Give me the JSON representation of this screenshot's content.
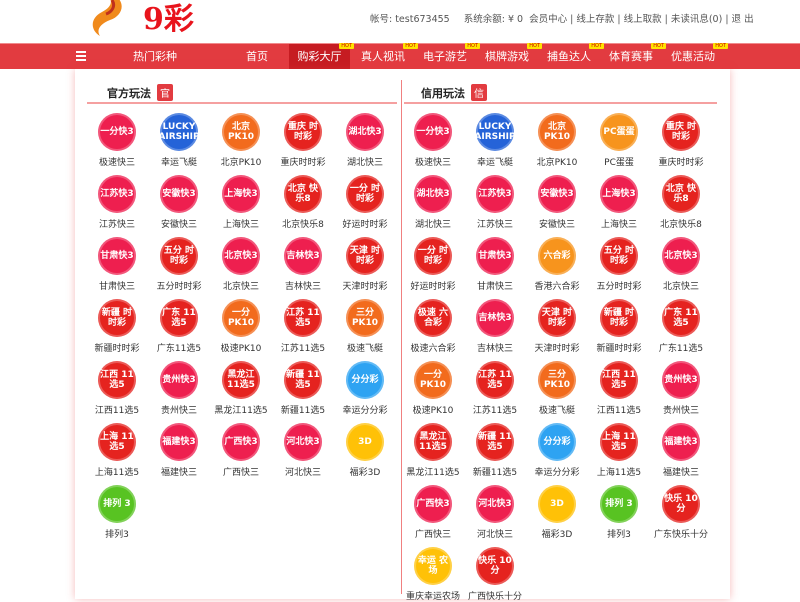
{
  "header": {
    "brand": "9彩",
    "account_label": "帐号:",
    "account": "test673455",
    "balance_label": "系统余额:",
    "balance": "¥ 0",
    "links": [
      "会员中心",
      "线上存款",
      "线上取款",
      "未读讯息(0)",
      "退 出"
    ]
  },
  "nav": {
    "menu": "热门彩种",
    "items": [
      {
        "label": "首页",
        "hot": false
      },
      {
        "label": "购彩大厅",
        "hot": true,
        "active": true
      },
      {
        "label": "真人视讯",
        "hot": true
      },
      {
        "label": "电子游艺",
        "hot": true
      },
      {
        "label": "棋牌游戏",
        "hot": true
      },
      {
        "label": "捕鱼达人",
        "hot": true
      },
      {
        "label": "体育赛事",
        "hot": true
      },
      {
        "label": "优惠活动",
        "hot": true
      }
    ],
    "hot_badge": "HOT"
  },
  "colors": {
    "nav": "#e23b40",
    "active": "#c61c22",
    "k3": "#ee1f4f",
    "pk10": "#f26b1d",
    "ssc": "#e5231f",
    "x5": "#e5231f",
    "lucky": "#2563d8",
    "ffc": "#2ea3f2",
    "d3": "#ffc107",
    "pl3": "#58c322",
    "pc": "#f7941d"
  },
  "official": {
    "title": "官方玩法",
    "badge": "官",
    "games": [
      {
        "name": "极速快三",
        "icon": "k3",
        "mark": "一分快3"
      },
      {
        "name": "幸运飞艇",
        "icon": "lucky",
        "mark": "LUCKY AIRSHIP"
      },
      {
        "name": "北京PK10",
        "icon": "pk10",
        "mark": "北京 PK10"
      },
      {
        "name": "重庆时时彩",
        "icon": "ssc",
        "mark": "重庆 时时彩"
      },
      {
        "name": "湖北快三",
        "icon": "k3",
        "mark": "湖北快3"
      },
      {
        "name": "江苏快三",
        "icon": "k3",
        "mark": "江苏快3"
      },
      {
        "name": "安徽快三",
        "icon": "k3",
        "mark": "安徽快3"
      },
      {
        "name": "上海快三",
        "icon": "k3",
        "mark": "上海快3"
      },
      {
        "name": "北京快乐8",
        "icon": "ssc",
        "mark": "北京 快乐8"
      },
      {
        "name": "好运时时彩",
        "icon": "ssc",
        "mark": "一分 时时彩"
      },
      {
        "name": "甘肃快三",
        "icon": "k3",
        "mark": "甘肃快3"
      },
      {
        "name": "五分时时彩",
        "icon": "ssc",
        "mark": "五分 时时彩"
      },
      {
        "name": "北京快三",
        "icon": "k3",
        "mark": "北京快3"
      },
      {
        "name": "吉林快三",
        "icon": "k3",
        "mark": "吉林快3"
      },
      {
        "name": "天津时时彩",
        "icon": "ssc",
        "mark": "天津 时时彩"
      },
      {
        "name": "新疆时时彩",
        "icon": "ssc",
        "mark": "新疆 时时彩"
      },
      {
        "name": "广东11选5",
        "icon": "x5",
        "mark": "广东 11选5"
      },
      {
        "name": "极速PK10",
        "icon": "pk10",
        "mark": "一分 PK10"
      },
      {
        "name": "江苏11选5",
        "icon": "x5",
        "mark": "江苏 11选5"
      },
      {
        "name": "极速飞艇",
        "icon": "pk10",
        "mark": "三分 PK10"
      },
      {
        "name": "江西11选5",
        "icon": "x5",
        "mark": "江西 11选5"
      },
      {
        "name": "贵州快三",
        "icon": "k3",
        "mark": "贵州快3"
      },
      {
        "name": "黑龙江11选5",
        "icon": "x5",
        "mark": "黑龙江 11选5"
      },
      {
        "name": "新疆11选5",
        "icon": "x5",
        "mark": "新疆 11选5"
      },
      {
        "name": "幸运分分彩",
        "icon": "ffc",
        "mark": "分分彩"
      },
      {
        "name": "上海11选5",
        "icon": "x5",
        "mark": "上海 11选5"
      },
      {
        "name": "福建快三",
        "icon": "k3",
        "mark": "福建快3"
      },
      {
        "name": "广西快三",
        "icon": "k3",
        "mark": "广西快3"
      },
      {
        "name": "河北快三",
        "icon": "k3",
        "mark": "河北快3"
      },
      {
        "name": "福彩3D",
        "icon": "d3",
        "mark": "3D"
      },
      {
        "name": "排列3",
        "icon": "pl3",
        "mark": "排列 3"
      }
    ]
  },
  "credit": {
    "title": "信用玩法",
    "badge": "信",
    "games": [
      {
        "name": "极速快三",
        "icon": "k3",
        "mark": "一分快3"
      },
      {
        "name": "幸运飞艇",
        "icon": "lucky",
        "mark": "LUCKY AIRSHIP"
      },
      {
        "name": "北京PK10",
        "icon": "pk10",
        "mark": "北京 PK10"
      },
      {
        "name": "PC蛋蛋",
        "icon": "pc",
        "mark": "PC蛋蛋"
      },
      {
        "name": "重庆时时彩",
        "icon": "ssc",
        "mark": "重庆 时时彩"
      },
      {
        "name": "湖北快三",
        "icon": "k3",
        "mark": "湖北快3"
      },
      {
        "name": "江苏快三",
        "icon": "k3",
        "mark": "江苏快3"
      },
      {
        "name": "安徽快三",
        "icon": "k3",
        "mark": "安徽快3"
      },
      {
        "name": "上海快三",
        "icon": "k3",
        "mark": "上海快3"
      },
      {
        "name": "北京快乐8",
        "icon": "ssc",
        "mark": "北京 快乐8"
      },
      {
        "name": "好运时时彩",
        "icon": "ssc",
        "mark": "一分 时时彩"
      },
      {
        "name": "甘肃快三",
        "icon": "k3",
        "mark": "甘肃快3"
      },
      {
        "name": "香港六合彩",
        "icon": "pc",
        "mark": "六合彩"
      },
      {
        "name": "五分时时彩",
        "icon": "ssc",
        "mark": "五分 时时彩"
      },
      {
        "name": "北京快三",
        "icon": "k3",
        "mark": "北京快3"
      },
      {
        "name": "极速六合彩",
        "icon": "ssc",
        "mark": "极速 六合彩"
      },
      {
        "name": "吉林快三",
        "icon": "k3",
        "mark": "吉林快3"
      },
      {
        "name": "天津时时彩",
        "icon": "ssc",
        "mark": "天津 时时彩"
      },
      {
        "name": "新疆时时彩",
        "icon": "ssc",
        "mark": "新疆 时时彩"
      },
      {
        "name": "广东11选5",
        "icon": "x5",
        "mark": "广东 11选5"
      },
      {
        "name": "极速PK10",
        "icon": "pk10",
        "mark": "一分 PK10"
      },
      {
        "name": "江苏11选5",
        "icon": "x5",
        "mark": "江苏 11选5"
      },
      {
        "name": "极速飞艇",
        "icon": "pk10",
        "mark": "三分 PK10"
      },
      {
        "name": "江西11选5",
        "icon": "x5",
        "mark": "江西 11选5"
      },
      {
        "name": "贵州快三",
        "icon": "k3",
        "mark": "贵州快3"
      },
      {
        "name": "黑龙江11选5",
        "icon": "x5",
        "mark": "黑龙江 11选5"
      },
      {
        "name": "新疆11选5",
        "icon": "x5",
        "mark": "新疆 11选5"
      },
      {
        "name": "幸运分分彩",
        "icon": "ffc",
        "mark": "分分彩"
      },
      {
        "name": "上海11选5",
        "icon": "x5",
        "mark": "上海 11选5"
      },
      {
        "name": "福建快三",
        "icon": "k3",
        "mark": "福建快3"
      },
      {
        "name": "广西快三",
        "icon": "k3",
        "mark": "广西快3"
      },
      {
        "name": "河北快三",
        "icon": "k3",
        "mark": "河北快3"
      },
      {
        "name": "福彩3D",
        "icon": "d3",
        "mark": "3D"
      },
      {
        "name": "排列3",
        "icon": "pl3",
        "mark": "排列 3"
      },
      {
        "name": "广东快乐十分",
        "icon": "ssc",
        "mark": "快乐 10分"
      },
      {
        "name": "重庆幸运农场",
        "icon": "d3",
        "mark": "幸运 农场"
      },
      {
        "name": "广西快乐十分",
        "icon": "ssc",
        "mark": "快乐 10分"
      }
    ]
  }
}
